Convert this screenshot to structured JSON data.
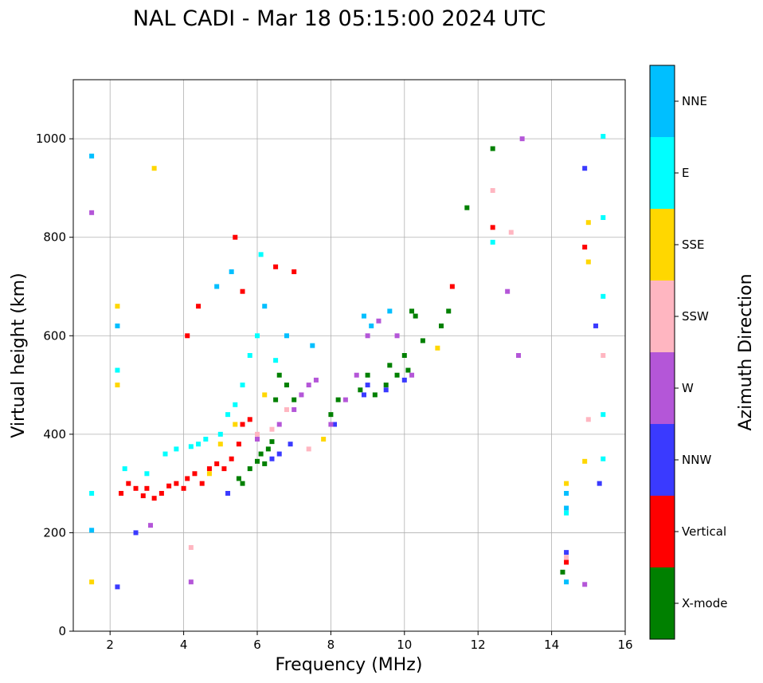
{
  "chart_data": {
    "type": "scatter",
    "title": "NAL CADI - Mar 18 05:15:00 2024 UTC",
    "xlabel": "Frequency (MHz)",
    "ylabel": "Virtual height (km)",
    "xlim": [
      1,
      16
    ],
    "ylim": [
      0,
      1120
    ],
    "xticks": [
      2,
      4,
      6,
      8,
      10,
      12,
      14,
      16
    ],
    "yticks": [
      0,
      200,
      400,
      600,
      800,
      1000
    ],
    "grid": true,
    "colorbar": {
      "label": "Azimuth Direction",
      "categories": [
        "X-mode",
        "Vertical",
        "NNW",
        "W",
        "SSW",
        "SSE",
        "E",
        "NNE"
      ],
      "colors": [
        "#008000",
        "#ff0000",
        "#3a3aff",
        "#b456d8",
        "#ffb6c1",
        "#ffd700",
        "#00ffff",
        "#00bfff"
      ]
    },
    "series": [
      {
        "name": "X-mode",
        "points": [
          [
            5.5,
            310
          ],
          [
            5.6,
            300
          ],
          [
            5.8,
            330
          ],
          [
            6.0,
            345
          ],
          [
            6.1,
            360
          ],
          [
            6.2,
            340
          ],
          [
            6.3,
            370
          ],
          [
            6.4,
            385
          ],
          [
            6.5,
            470
          ],
          [
            6.6,
            520
          ],
          [
            6.8,
            500
          ],
          [
            7.0,
            470
          ],
          [
            8.0,
            440
          ],
          [
            8.2,
            470
          ],
          [
            8.8,
            490
          ],
          [
            9.0,
            520
          ],
          [
            9.2,
            480
          ],
          [
            9.5,
            500
          ],
          [
            9.6,
            540
          ],
          [
            9.8,
            520
          ],
          [
            10.0,
            560
          ],
          [
            10.1,
            530
          ],
          [
            10.3,
            640
          ],
          [
            10.2,
            650
          ],
          [
            10.5,
            590
          ],
          [
            11.0,
            620
          ],
          [
            11.2,
            650
          ],
          [
            11.7,
            860
          ],
          [
            12.4,
            980
          ],
          [
            14.3,
            120
          ]
        ]
      },
      {
        "name": "Vertical",
        "points": [
          [
            2.3,
            280
          ],
          [
            2.5,
            300
          ],
          [
            2.7,
            290
          ],
          [
            2.9,
            275
          ],
          [
            3.0,
            290
          ],
          [
            3.2,
            270
          ],
          [
            3.4,
            280
          ],
          [
            3.6,
            295
          ],
          [
            3.8,
            300
          ],
          [
            4.0,
            290
          ],
          [
            4.1,
            310
          ],
          [
            4.3,
            320
          ],
          [
            4.5,
            300
          ],
          [
            4.7,
            330
          ],
          [
            4.9,
            340
          ],
          [
            5.1,
            330
          ],
          [
            5.3,
            350
          ],
          [
            5.5,
            380
          ],
          [
            5.6,
            420
          ],
          [
            5.8,
            430
          ],
          [
            4.4,
            660
          ],
          [
            4.1,
            600
          ],
          [
            5.4,
            800
          ],
          [
            5.6,
            690
          ],
          [
            6.5,
            740
          ],
          [
            7.0,
            730
          ],
          [
            11.3,
            700
          ],
          [
            12.4,
            820
          ],
          [
            14.4,
            140
          ],
          [
            14.9,
            780
          ]
        ]
      },
      {
        "name": "NNW",
        "points": [
          [
            2.2,
            90
          ],
          [
            2.7,
            200
          ],
          [
            5.2,
            280
          ],
          [
            6.4,
            350
          ],
          [
            6.6,
            360
          ],
          [
            6.9,
            380
          ],
          [
            8.1,
            420
          ],
          [
            8.9,
            480
          ],
          [
            9.0,
            500
          ],
          [
            9.5,
            490
          ],
          [
            10.0,
            510
          ],
          [
            14.4,
            160
          ],
          [
            14.9,
            940
          ],
          [
            15.2,
            620
          ],
          [
            15.3,
            300
          ]
        ]
      },
      {
        "name": "W",
        "points": [
          [
            1.5,
            850
          ],
          [
            3.1,
            215
          ],
          [
            4.2,
            100
          ],
          [
            6.0,
            390
          ],
          [
            6.6,
            420
          ],
          [
            7.0,
            450
          ],
          [
            7.2,
            480
          ],
          [
            7.4,
            500
          ],
          [
            7.6,
            510
          ],
          [
            8.0,
            420
          ],
          [
            8.4,
            470
          ],
          [
            8.7,
            520
          ],
          [
            9.0,
            600
          ],
          [
            9.3,
            630
          ],
          [
            9.8,
            600
          ],
          [
            10.2,
            520
          ],
          [
            12.8,
            690
          ],
          [
            13.1,
            560
          ],
          [
            13.2,
            1000
          ],
          [
            14.9,
            95
          ]
        ]
      },
      {
        "name": "SSW",
        "points": [
          [
            4.2,
            170
          ],
          [
            6.0,
            400
          ],
          [
            6.4,
            410
          ],
          [
            6.8,
            450
          ],
          [
            7.4,
            370
          ],
          [
            12.9,
            810
          ],
          [
            12.4,
            895
          ],
          [
            14.4,
            150
          ],
          [
            15.0,
            430
          ],
          [
            15.4,
            560
          ]
        ]
      },
      {
        "name": "SSE",
        "points": [
          [
            1.5,
            100
          ],
          [
            2.2,
            500
          ],
          [
            2.2,
            660
          ],
          [
            3.2,
            940
          ],
          [
            4.7,
            320
          ],
          [
            5.0,
            380
          ],
          [
            5.4,
            420
          ],
          [
            6.2,
            480
          ],
          [
            7.8,
            390
          ],
          [
            10.9,
            575
          ],
          [
            14.4,
            300
          ],
          [
            14.9,
            345
          ],
          [
            15.0,
            750
          ],
          [
            15.0,
            830
          ]
        ]
      },
      {
        "name": "E",
        "points": [
          [
            1.5,
            280
          ],
          [
            2.2,
            530
          ],
          [
            2.4,
            330
          ],
          [
            3.0,
            320
          ],
          [
            3.5,
            360
          ],
          [
            3.8,
            370
          ],
          [
            4.2,
            375
          ],
          [
            4.4,
            380
          ],
          [
            4.6,
            390
          ],
          [
            5.0,
            400
          ],
          [
            5.2,
            440
          ],
          [
            5.4,
            460
          ],
          [
            5.6,
            500
          ],
          [
            5.8,
            560
          ],
          [
            6.0,
            600
          ],
          [
            6.1,
            765
          ],
          [
            6.5,
            550
          ],
          [
            12.4,
            790
          ],
          [
            14.4,
            240
          ],
          [
            15.4,
            350
          ],
          [
            15.4,
            440
          ],
          [
            15.4,
            680
          ],
          [
            15.4,
            840
          ],
          [
            15.4,
            1005
          ]
        ]
      },
      {
        "name": "NNE",
        "points": [
          [
            1.5,
            205
          ],
          [
            1.5,
            965
          ],
          [
            2.2,
            620
          ],
          [
            4.9,
            700
          ],
          [
            5.3,
            730
          ],
          [
            6.2,
            660
          ],
          [
            6.8,
            600
          ],
          [
            7.5,
            580
          ],
          [
            8.9,
            640
          ],
          [
            9.1,
            620
          ],
          [
            9.6,
            650
          ],
          [
            14.4,
            100
          ],
          [
            14.4,
            250
          ],
          [
            14.4,
            280
          ]
        ]
      }
    ]
  }
}
